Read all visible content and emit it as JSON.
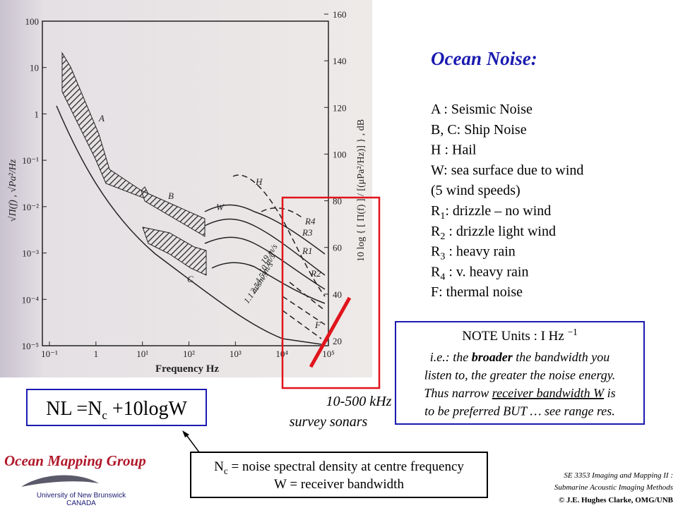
{
  "title": "Ocean Noise:",
  "legend_items": [
    {
      "text": "A : Seismic Noise"
    },
    {
      "text": "B, C: Ship Noise"
    },
    {
      "text": "H : Hail"
    },
    {
      "text": "W: sea surface due to wind"
    },
    {
      "text": "(5 wind speeds)"
    },
    {
      "prefix": "R",
      "sub": "1",
      "text": ": drizzle – no wind"
    },
    {
      "prefix": "R",
      "sub": "2",
      "text": " : drizzle light wind"
    },
    {
      "prefix": "R",
      "sub": "3",
      "text": " : heavy rain"
    },
    {
      "prefix": "R",
      "sub": "4",
      "text": " : v. heavy rain"
    },
    {
      "text": "F: thermal noise"
    }
  ],
  "figure": {
    "left_ticks": [
      "100",
      "10",
      "1",
      "10⁻¹",
      "10⁻²",
      "10⁻³",
      "10⁻⁴",
      "10⁻⁵"
    ],
    "right_ticks": [
      "160",
      "140",
      "120",
      "100",
      "80",
      "60",
      "40",
      "20"
    ],
    "x_ticks": [
      "10⁻¹",
      "1",
      "10¹",
      "10²",
      "10³",
      "10⁴",
      "10⁵"
    ],
    "x_label": "Frequency   Hz",
    "left_label": "√Π(f) , √Pa²/Hz",
    "right_label": "10 log { [ Π(f) ] / [(μPa²/Hz)] } , dB",
    "curve_labels": [
      "A",
      "B",
      "C",
      "H",
      "W",
      "R4",
      "R3",
      "R1",
      "R2",
      "F"
    ],
    "wind_labels": [
      "19 m/s",
      "10 m/s",
      "4.5 m/s",
      "2.5 m/s",
      "1.1 m/s"
    ]
  },
  "sonar_label": [
    "10-500 kHz",
    "survey sonars"
  ],
  "note": {
    "title": {
      "text": "NOTE Units : I Hz ",
      "sup": "−1"
    },
    "lines": [
      [
        {
          "text": "i.e.: the "
        },
        {
          "text": "broader",
          "style": "bold"
        },
        {
          "text": " the bandwidth you"
        }
      ],
      [
        {
          "text": "listen to, the greater the noise energy."
        }
      ],
      [
        {
          "text": "Thus narrow "
        },
        {
          "text": "receiver bandwidth W",
          "style": "underline"
        },
        {
          "text": " is"
        }
      ],
      [
        {
          "text": "to be preferred BUT … see range res."
        }
      ]
    ]
  },
  "formula": {
    "main": "NL =N",
    "sub": "c",
    "rest": " +10logW"
  },
  "definitions": [
    {
      "prefix": "N",
      "sub": "c",
      "text": " = noise spectral density at centre frequency"
    },
    {
      "text": "W = receiver bandwidth"
    }
  ],
  "logo": {
    "name": "Ocean Mapping Group",
    "university": "University of New Brunswick",
    "country": "CANADA"
  },
  "footer": [
    "SE 3353 Imaging and Mapping II :",
    "Submarine Acoustic Imaging Methods",
    "© J.E. Hughes Clarke, OMG/UNB"
  ]
}
